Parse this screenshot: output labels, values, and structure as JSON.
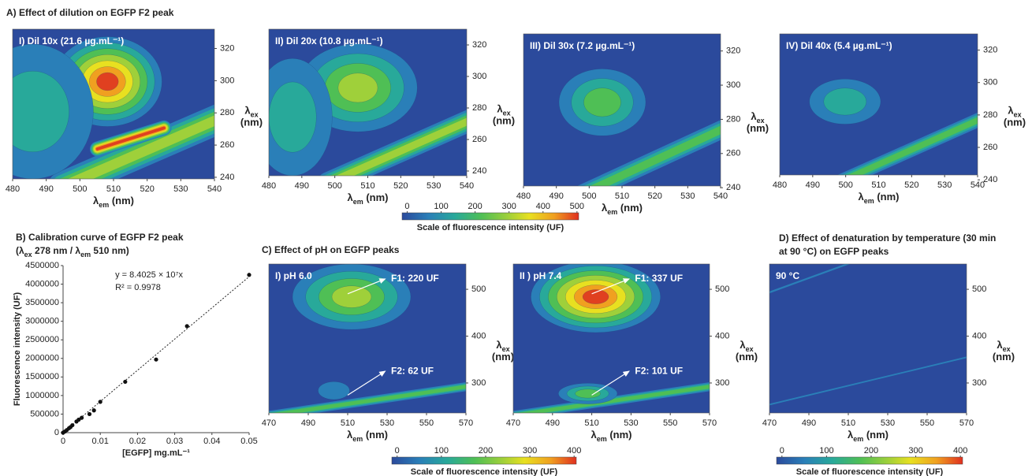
{
  "chart_data": [
    {
      "type": "heatmap",
      "title": [
        [
          "A) Effect of dilution on EGFP F2 peak"
        ]
      ],
      "label": "I) Dil 10x (21.6 µg.mL⁻¹)",
      "x_label": [
        "λ",
        "em",
        " (nm)"
      ],
      "y_label": [
        [
          "λ",
          "ex"
        ],
        [
          "(nm)"
        ]
      ],
      "xlim": [
        480,
        540
      ],
      "xticks": [
        480,
        490,
        500,
        510,
        520,
        530,
        540
      ],
      "ylim": [
        239,
        332
      ],
      "yticks": [
        240,
        260,
        280,
        300,
        320
      ]
    },
    {
      "type": "heatmap",
      "label": "II) Dil 20x (10.8 µg.mL⁻¹)",
      "x_label": [
        "λ",
        "em",
        " (nm)"
      ],
      "y_label": [
        [
          "λ",
          "ex"
        ],
        [
          "(nm)"
        ]
      ],
      "xlim": [
        480,
        540
      ],
      "xticks": [
        480,
        490,
        500,
        510,
        520,
        530,
        540
      ],
      "ylim": [
        237,
        330
      ],
      "yticks": [
        240,
        260,
        280,
        300,
        320
      ]
    },
    {
      "type": "heatmap",
      "label": "III) Dil 30x (7.2 µg.mL⁻¹)",
      "x_label": [
        "λ",
        "em",
        " (nm)"
      ],
      "y_label": [
        [
          "λ",
          "ex"
        ],
        [
          "(nm)"
        ]
      ],
      "xlim": [
        480,
        540
      ],
      "xticks": [
        480,
        490,
        500,
        510,
        520,
        530,
        540
      ],
      "ylim": [
        241,
        330
      ],
      "yticks": [
        240,
        260,
        280,
        300,
        320
      ]
    },
    {
      "type": "heatmap",
      "label": "IV) Dil 40x (5.4 µg.mL⁻¹)",
      "x_label": [
        "λ",
        "em",
        " (nm)"
      ],
      "y_label": [
        [
          "λ",
          "ex"
        ],
        [
          "(nm)"
        ]
      ],
      "xlim": [
        480,
        540
      ],
      "xticks": [
        480,
        490,
        500,
        510,
        520,
        530,
        540
      ],
      "ylim": [
        243,
        330
      ],
      "yticks": [
        240,
        260,
        280,
        300,
        320
      ]
    },
    {
      "type": "colorbar",
      "label": "Scale of fluorescence intensity (UF)",
      "xlim": [
        -15,
        505
      ],
      "xticks": [
        0,
        100,
        200,
        300,
        400,
        500
      ]
    },
    {
      "type": "scatter",
      "title": [
        [
          "B) Calibration curve of EGFP F2 peak"
        ],
        [
          "(λ",
          "ex",
          " 278 nm / λ",
          "em",
          " 510 nm)"
        ]
      ],
      "x_label": "[EGFP] mg.mL⁻¹",
      "y_label": "Fluorescence intensity (UF)",
      "x": [
        0,
        0.0005,
        0.001,
        0.0016,
        0.002,
        0.0025,
        0.0036,
        0.0042,
        0.005,
        0.0071,
        0.0083,
        0.01,
        0.0167,
        0.025,
        0.0333,
        0.05
      ],
      "values": [
        0,
        30000,
        70000,
        120000,
        150000,
        200000,
        300000,
        350000,
        400000,
        500000,
        600000,
        830000,
        1370000,
        1970000,
        2870000,
        4250000
      ],
      "xlim": [
        0,
        0.05
      ],
      "xticks": [
        0,
        0.01,
        0.02,
        0.03,
        0.04,
        0.05
      ],
      "ylim": [
        0,
        4500000
      ],
      "yticks": [
        0,
        500000,
        1000000,
        1500000,
        2000000,
        2500000,
        3000000,
        3500000,
        4000000,
        4500000
      ],
      "trendline": {
        "equation": "y = 8.4025 × 10⁷x",
        "slope": 84025000,
        "r2": "R² = 0.9978"
      }
    },
    {
      "type": "heatmap",
      "title": [
        [
          "C) Effect of pH on EGFP peaks"
        ]
      ],
      "label": "I) pH 6.0",
      "x_label": [
        "λ",
        "em",
        " (nm)"
      ],
      "y_label": [
        [
          "λ",
          "ex"
        ],
        [
          "(nm)"
        ]
      ],
      "xlim": [
        470,
        570
      ],
      "xticks": [
        470,
        490,
        510,
        530,
        550,
        570
      ],
      "ylim": [
        236,
        554
      ],
      "yticks": [
        300,
        400,
        500
      ],
      "annotations": [
        "F1: 220 UF",
        "F2: 62 UF"
      ]
    },
    {
      "type": "heatmap",
      "label": "II ) pH 7.4",
      "x_label": [
        "λ",
        "em",
        " (nm)"
      ],
      "y_label": [
        [
          "λ",
          "ex"
        ],
        [
          "(nm)"
        ]
      ],
      "xlim": [
        470,
        570
      ],
      "xticks": [
        470,
        490,
        510,
        530,
        550,
        570
      ],
      "ylim": [
        236,
        554
      ],
      "yticks": [
        300,
        400,
        500
      ],
      "annotations": [
        "F1: 337 UF",
        "F2: 101 UF"
      ]
    },
    {
      "type": "colorbar",
      "label": "Scale of fluorescence intensity (UF)",
      "xlim": [
        -12,
        405
      ],
      "xticks": [
        0,
        100,
        200,
        300,
        400
      ]
    },
    {
      "type": "heatmap",
      "title": [
        [
          "D) Effect of denaturation by temperature (30 min"
        ],
        [
          "at 90 °C) on EGFP peaks"
        ]
      ],
      "label": "90 °C",
      "x_label": [
        "λ",
        "em",
        " (nm)"
      ],
      "y_label": [
        [
          "λ",
          "ex"
        ],
        [
          "(nm)"
        ]
      ],
      "xlim": [
        470,
        570
      ],
      "xticks": [
        470,
        490,
        510,
        530,
        550,
        570
      ],
      "ylim": [
        236,
        554
      ],
      "yticks": [
        300,
        400,
        500
      ]
    },
    {
      "type": "colorbar",
      "label": "Scale of fluorescence intensity (UF)",
      "xlim": [
        -12,
        405
      ],
      "xticks": [
        0,
        100,
        200,
        300,
        400
      ]
    }
  ]
}
